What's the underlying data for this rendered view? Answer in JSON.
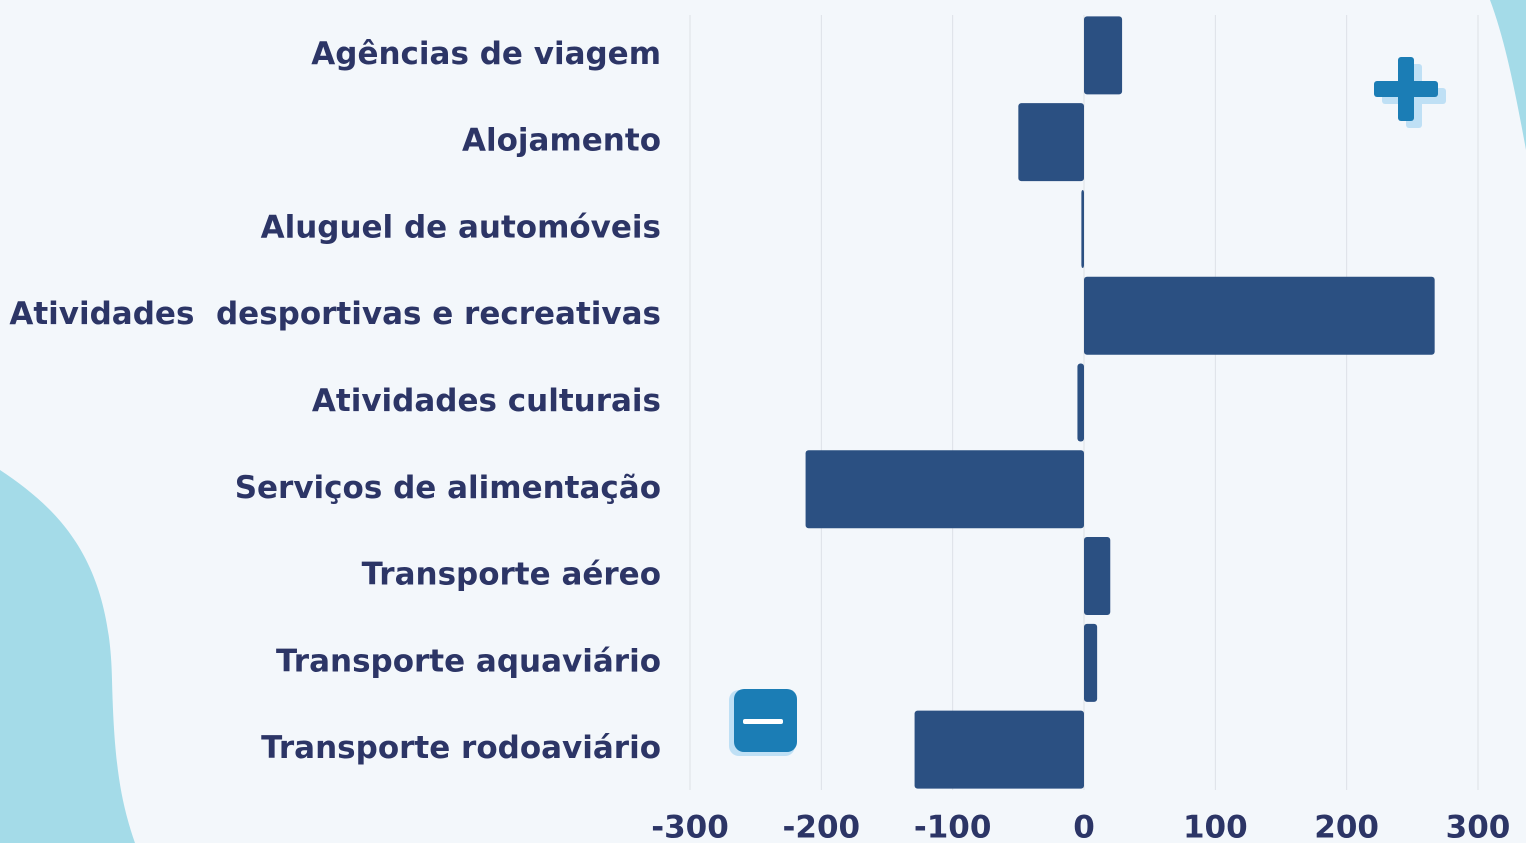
{
  "chart_data": {
    "type": "barh",
    "categories": [
      "Agências de viagem",
      "Alojamento",
      "Aluguel de automóveis",
      "Atividades  desportivas e recreativas",
      "Atividades culturais",
      "Serviços de alimentação",
      "Transporte aéreo",
      "Transporte aquaviário",
      "Transporte rodoaviário"
    ],
    "values": [
      29,
      -50,
      -2,
      267,
      -5,
      -212,
      20,
      10,
      -129
    ],
    "color": "#2b5082",
    "xlim": [
      -300,
      300
    ],
    "xticks": [
      -300,
      -200,
      -100,
      0,
      100,
      200,
      300
    ],
    "grid": true
  }
}
